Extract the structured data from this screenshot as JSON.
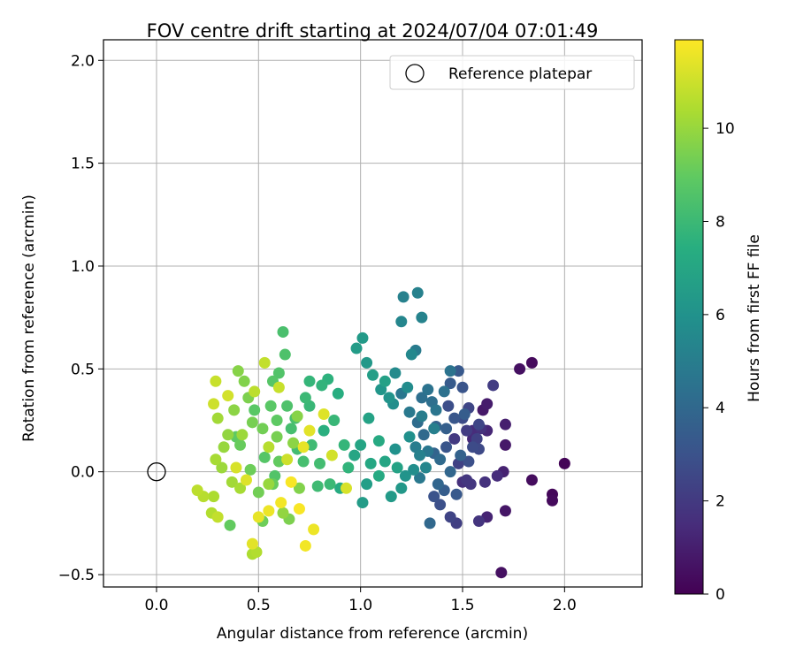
{
  "chart_data": {
    "type": "scatter",
    "title": "FOV centre drift starting at 2024/07/04 07:01:49",
    "xlabel": "Angular distance from reference (arcmin)",
    "ylabel": "Rotation from reference (arcmin)",
    "xlim": [
      -0.26,
      2.38
    ],
    "ylim": [
      -0.56,
      2.1
    ],
    "x_ticks": [
      "0.0",
      "0.5",
      "1.0",
      "1.5",
      "2.0"
    ],
    "y_ticks": [
      "−0.5",
      "0.0",
      "0.5",
      "1.0",
      "1.5",
      "2.0"
    ],
    "grid": true,
    "legend": {
      "position": "top-right",
      "entries": [
        {
          "label": "Reference platepar",
          "marker": "open-circle"
        }
      ]
    },
    "reference_point": {
      "x": 0.0,
      "y": 0.0
    },
    "colorbar": {
      "label": "Hours from first FF file",
      "range": [
        0,
        11.9
      ],
      "ticks": [
        "0",
        "2",
        "4",
        "6",
        "8",
        "10"
      ],
      "colormap": "viridis"
    },
    "series": [
      {
        "color_by": "hours",
        "points": [
          [
            2.0,
            0.04,
            0.1
          ],
          [
            1.94,
            -0.11,
            0.2
          ],
          [
            1.94,
            -0.14,
            0.3
          ],
          [
            1.84,
            0.53,
            0.3
          ],
          [
            1.84,
            -0.04,
            0.4
          ],
          [
            1.78,
            0.5,
            0.5
          ],
          [
            1.69,
            -0.49,
            0.5
          ],
          [
            1.71,
            -0.19,
            0.7
          ],
          [
            1.71,
            0.13,
            0.8
          ],
          [
            1.6,
            0.3,
            0.8
          ],
          [
            1.62,
            0.33,
            0.9
          ],
          [
            1.71,
            0.23,
            1.0
          ],
          [
            1.7,
            0.0,
            1.1
          ],
          [
            1.62,
            -0.22,
            1.2
          ],
          [
            1.62,
            0.2,
            1.3
          ],
          [
            1.55,
            0.16,
            1.4
          ],
          [
            1.55,
            0.2,
            1.5
          ],
          [
            1.5,
            -0.05,
            1.6
          ],
          [
            1.61,
            -0.05,
            1.7
          ],
          [
            1.58,
            -0.24,
            1.8
          ],
          [
            1.54,
            -0.06,
            1.9
          ],
          [
            1.46,
            0.16,
            2.0
          ],
          [
            1.52,
            0.2,
            2.1
          ],
          [
            1.47,
            -0.25,
            2.2
          ],
          [
            1.48,
            0.04,
            2.3
          ],
          [
            1.44,
            -0.22,
            2.4
          ],
          [
            1.53,
            0.31,
            2.5
          ],
          [
            1.58,
            0.11,
            2.6
          ],
          [
            1.5,
            0.26,
            2.7
          ],
          [
            1.43,
            0.32,
            2.8
          ],
          [
            1.39,
            -0.16,
            2.9
          ],
          [
            1.36,
            -0.12,
            3.0
          ],
          [
            1.42,
            0.12,
            3.1
          ],
          [
            1.46,
            0.26,
            3.2
          ],
          [
            1.48,
            0.49,
            3.3
          ],
          [
            1.44,
            0.43,
            3.4
          ],
          [
            1.51,
            0.28,
            3.5
          ],
          [
            1.42,
            0.21,
            3.6
          ],
          [
            1.37,
            0.22,
            3.7
          ],
          [
            1.36,
            0.09,
            3.8
          ],
          [
            1.38,
            -0.06,
            3.9
          ],
          [
            1.34,
            -0.25,
            4.0
          ],
          [
            1.31,
            0.18,
            4.1
          ],
          [
            1.28,
            0.24,
            4.2
          ],
          [
            1.3,
            0.36,
            4.3
          ],
          [
            1.41,
            0.39,
            4.4
          ],
          [
            1.44,
            0.49,
            4.5
          ],
          [
            1.37,
            0.3,
            4.6
          ],
          [
            1.33,
            0.1,
            4.7
          ],
          [
            1.29,
            -0.03,
            4.8
          ],
          [
            1.27,
            0.59,
            4.9
          ],
          [
            1.3,
            0.27,
            5.0
          ],
          [
            1.36,
            0.21,
            5.1
          ],
          [
            1.28,
            0.87,
            5.2
          ],
          [
            1.21,
            0.85,
            5.2
          ],
          [
            1.3,
            0.75,
            5.3
          ],
          [
            1.2,
            0.73,
            5.4
          ],
          [
            1.25,
            0.57,
            5.5
          ],
          [
            1.17,
            0.48,
            5.6
          ],
          [
            1.23,
            0.41,
            5.7
          ],
          [
            1.16,
            0.33,
            5.8
          ],
          [
            1.24,
            0.17,
            5.9
          ],
          [
            1.17,
            0.11,
            6.0
          ],
          [
            1.14,
            0.36,
            6.1
          ],
          [
            1.1,
            0.4,
            6.2
          ],
          [
            1.03,
            0.53,
            6.3
          ],
          [
            1.01,
            0.65,
            6.4
          ],
          [
            0.98,
            0.6,
            6.5
          ],
          [
            1.06,
            0.47,
            6.6
          ],
          [
            1.12,
            0.44,
            6.7
          ],
          [
            1.04,
            0.26,
            6.8
          ],
          [
            1.0,
            0.13,
            6.9
          ],
          [
            0.97,
            0.08,
            7.0
          ],
          [
            1.05,
            0.04,
            7.1
          ],
          [
            1.09,
            0.15,
            7.2
          ],
          [
            1.2,
            -0.08,
            6.3
          ],
          [
            1.15,
            -0.12,
            6.4
          ],
          [
            1.01,
            -0.15,
            6.5
          ],
          [
            1.03,
            -0.06,
            6.6
          ],
          [
            0.9,
            -0.08,
            7.3
          ],
          [
            0.89,
            0.38,
            7.4
          ],
          [
            0.82,
            0.2,
            7.5
          ],
          [
            0.84,
            0.45,
            7.6
          ],
          [
            0.81,
            0.42,
            7.7
          ],
          [
            0.75,
            0.44,
            7.8
          ],
          [
            0.75,
            0.32,
            7.9
          ],
          [
            0.73,
            0.36,
            8.0
          ],
          [
            0.76,
            0.13,
            8.1
          ],
          [
            0.69,
            0.11,
            8.2
          ],
          [
            0.66,
            0.21,
            8.3
          ],
          [
            0.62,
            0.68,
            8.4
          ],
          [
            0.63,
            0.57,
            8.5
          ],
          [
            0.6,
            0.48,
            8.6
          ],
          [
            0.57,
            0.44,
            8.7
          ],
          [
            0.56,
            0.32,
            8.8
          ],
          [
            0.59,
            0.25,
            8.9
          ],
          [
            0.6,
            0.05,
            9.0
          ],
          [
            0.57,
            -0.06,
            9.1
          ],
          [
            0.52,
            -0.24,
            9.2
          ],
          [
            0.5,
            -0.1,
            9.3
          ],
          [
            0.47,
            0.24,
            9.4
          ],
          [
            0.45,
            0.36,
            9.5
          ],
          [
            0.43,
            0.44,
            9.6
          ],
          [
            0.4,
            0.49,
            9.7
          ],
          [
            0.38,
            0.3,
            9.8
          ],
          [
            0.35,
            0.18,
            9.9
          ],
          [
            0.33,
            0.12,
            10.0
          ],
          [
            0.32,
            0.02,
            10.1
          ],
          [
            0.3,
            0.26,
            10.2
          ],
          [
            0.29,
            0.06,
            10.3
          ],
          [
            0.28,
            -0.12,
            10.4
          ],
          [
            0.27,
            -0.2,
            10.5
          ],
          [
            0.23,
            -0.12,
            10.6
          ],
          [
            0.2,
            -0.09,
            10.7
          ],
          [
            0.3,
            -0.22,
            10.8
          ],
          [
            0.29,
            0.44,
            10.9
          ],
          [
            0.28,
            0.33,
            11.0
          ],
          [
            0.35,
            0.37,
            11.1
          ],
          [
            0.39,
            0.02,
            11.2
          ],
          [
            0.44,
            -0.04,
            11.3
          ],
          [
            0.47,
            -0.35,
            11.4
          ],
          [
            0.5,
            -0.22,
            11.5
          ],
          [
            0.55,
            -0.19,
            11.6
          ],
          [
            0.61,
            -0.15,
            11.7
          ],
          [
            0.66,
            -0.05,
            11.8
          ],
          [
            0.7,
            -0.18,
            11.8
          ],
          [
            0.73,
            -0.36,
            11.7
          ],
          [
            0.77,
            -0.28,
            11.6
          ],
          [
            0.72,
            0.12,
            11.5
          ],
          [
            0.75,
            0.2,
            11.4
          ],
          [
            0.82,
            0.28,
            11.3
          ],
          [
            0.93,
            -0.08,
            11.2
          ],
          [
            0.86,
            0.08,
            11.1
          ],
          [
            0.64,
            0.06,
            11.0
          ],
          [
            0.6,
            0.41,
            10.9
          ],
          [
            0.53,
            0.53,
            10.8
          ],
          [
            0.48,
            0.39,
            10.7
          ],
          [
            0.55,
            0.12,
            10.6
          ],
          [
            0.49,
            -0.39,
            10.5
          ],
          [
            0.47,
            -0.4,
            10.4
          ],
          [
            0.41,
            -0.08,
            10.3
          ],
          [
            0.37,
            -0.05,
            10.2
          ],
          [
            0.42,
            0.18,
            10.1
          ],
          [
            0.55,
            -0.06,
            10.0
          ],
          [
            0.62,
            -0.2,
            9.9
          ],
          [
            0.67,
            0.14,
            9.8
          ],
          [
            0.69,
            0.27,
            9.7
          ],
          [
            0.7,
            -0.08,
            9.6
          ],
          [
            0.65,
            -0.23,
            9.5
          ],
          [
            0.59,
            0.17,
            9.4
          ],
          [
            0.52,
            0.21,
            9.3
          ],
          [
            0.46,
            0.01,
            9.2
          ],
          [
            0.41,
            0.13,
            9.1
          ],
          [
            0.36,
            -0.26,
            9.0
          ],
          [
            0.39,
            0.17,
            8.9
          ],
          [
            0.48,
            0.3,
            8.8
          ],
          [
            0.53,
            0.07,
            8.7
          ],
          [
            0.58,
            -0.02,
            8.6
          ],
          [
            0.64,
            0.32,
            8.5
          ],
          [
            0.68,
            0.26,
            8.4
          ],
          [
            0.72,
            0.05,
            8.3
          ],
          [
            0.8,
            0.04,
            8.2
          ],
          [
            0.79,
            -0.07,
            8.1
          ],
          [
            0.85,
            -0.06,
            8.0
          ],
          [
            0.87,
            0.25,
            7.9
          ],
          [
            0.92,
            0.13,
            7.8
          ],
          [
            0.94,
            0.02,
            7.7
          ],
          [
            1.09,
            -0.02,
            7.2
          ],
          [
            1.12,
            0.05,
            7.0
          ],
          [
            1.18,
            0.02,
            6.8
          ],
          [
            1.22,
            -0.02,
            6.1
          ],
          [
            1.26,
            0.01,
            5.8
          ],
          [
            1.32,
            0.02,
            5.4
          ],
          [
            1.29,
            0.08,
            5.2
          ],
          [
            1.27,
            0.12,
            5.0
          ],
          [
            1.24,
            0.29,
            4.8
          ],
          [
            1.2,
            0.38,
            4.7
          ],
          [
            1.33,
            0.4,
            4.5
          ],
          [
            1.35,
            0.34,
            4.3
          ],
          [
            1.39,
            0.06,
            4.1
          ],
          [
            1.44,
            0.0,
            3.9
          ],
          [
            1.49,
            0.08,
            3.7
          ],
          [
            1.41,
            -0.09,
            3.5
          ],
          [
            1.47,
            -0.11,
            3.3
          ],
          [
            1.5,
            0.41,
            3.1
          ],
          [
            1.53,
            0.05,
            2.9
          ],
          [
            1.55,
            0.12,
            2.7
          ],
          [
            1.58,
            0.23,
            2.5
          ],
          [
            1.57,
            0.16,
            2.3
          ],
          [
            1.65,
            0.42,
            2.1
          ],
          [
            1.52,
            -0.04,
            1.9
          ],
          [
            1.59,
            0.21,
            1.7
          ],
          [
            1.67,
            -0.02,
            1.5
          ]
        ]
      }
    ]
  }
}
